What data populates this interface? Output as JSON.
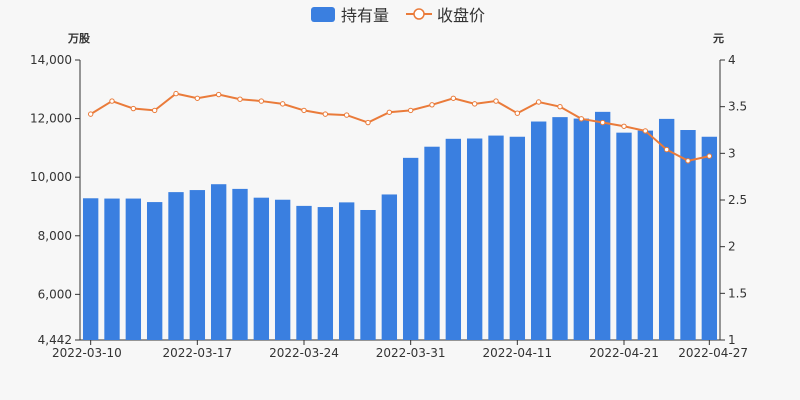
{
  "chart_data": {
    "type": "bar+line",
    "legend": {
      "position": "top-center",
      "items": [
        {
          "name": "持有量",
          "type": "bar",
          "color": "#3a7fe0"
        },
        {
          "name": "收盘价",
          "type": "line",
          "color": "#ea7b3a"
        }
      ]
    },
    "y_left": {
      "unit": "万股",
      "min": 4442,
      "max": 14000,
      "ticks": [
        4442,
        6000,
        8000,
        10000,
        12000,
        14000
      ],
      "tick_labels": [
        "4,442",
        "6,000",
        "8,000",
        "10,000",
        "12,000",
        "14,000"
      ]
    },
    "y_right": {
      "unit": "元",
      "min": 1,
      "max": 4,
      "ticks": [
        1,
        1.5,
        2,
        2.5,
        3,
        3.5,
        4
      ],
      "tick_labels": [
        "1",
        "1.5",
        "2",
        "2.5",
        "3",
        "3.5",
        "4"
      ]
    },
    "x_tick_labels": [
      "2022-03-10",
      "2022-03-17",
      "2022-03-24",
      "2022-03-31",
      "2022-04-11",
      "2022-04-21",
      "2022-04-27"
    ],
    "x_tick_label_index": [
      0,
      5,
      10,
      15,
      20,
      25,
      29
    ],
    "grid": false,
    "series": [
      {
        "name": "持有量",
        "axis": "left",
        "values": [
          9280,
          9270,
          9270,
          9150,
          9490,
          9560,
          9760,
          9600,
          9300,
          9230,
          9020,
          8980,
          9140,
          8880,
          9410,
          10660,
          11040,
          11310,
          11320,
          11420,
          11380,
          11900,
          12050,
          12000,
          12230,
          11520,
          11590,
          11990,
          11610,
          11380
        ]
      },
      {
        "name": "收盘价",
        "axis": "right",
        "values": [
          3.42,
          3.56,
          3.48,
          3.46,
          3.64,
          3.59,
          3.63,
          3.58,
          3.56,
          3.53,
          3.46,
          3.42,
          3.41,
          3.33,
          3.44,
          3.46,
          3.52,
          3.59,
          3.53,
          3.56,
          3.43,
          3.55,
          3.5,
          3.37,
          3.33,
          3.29,
          3.24,
          3.04,
          2.92,
          2.97
        ]
      }
    ]
  }
}
